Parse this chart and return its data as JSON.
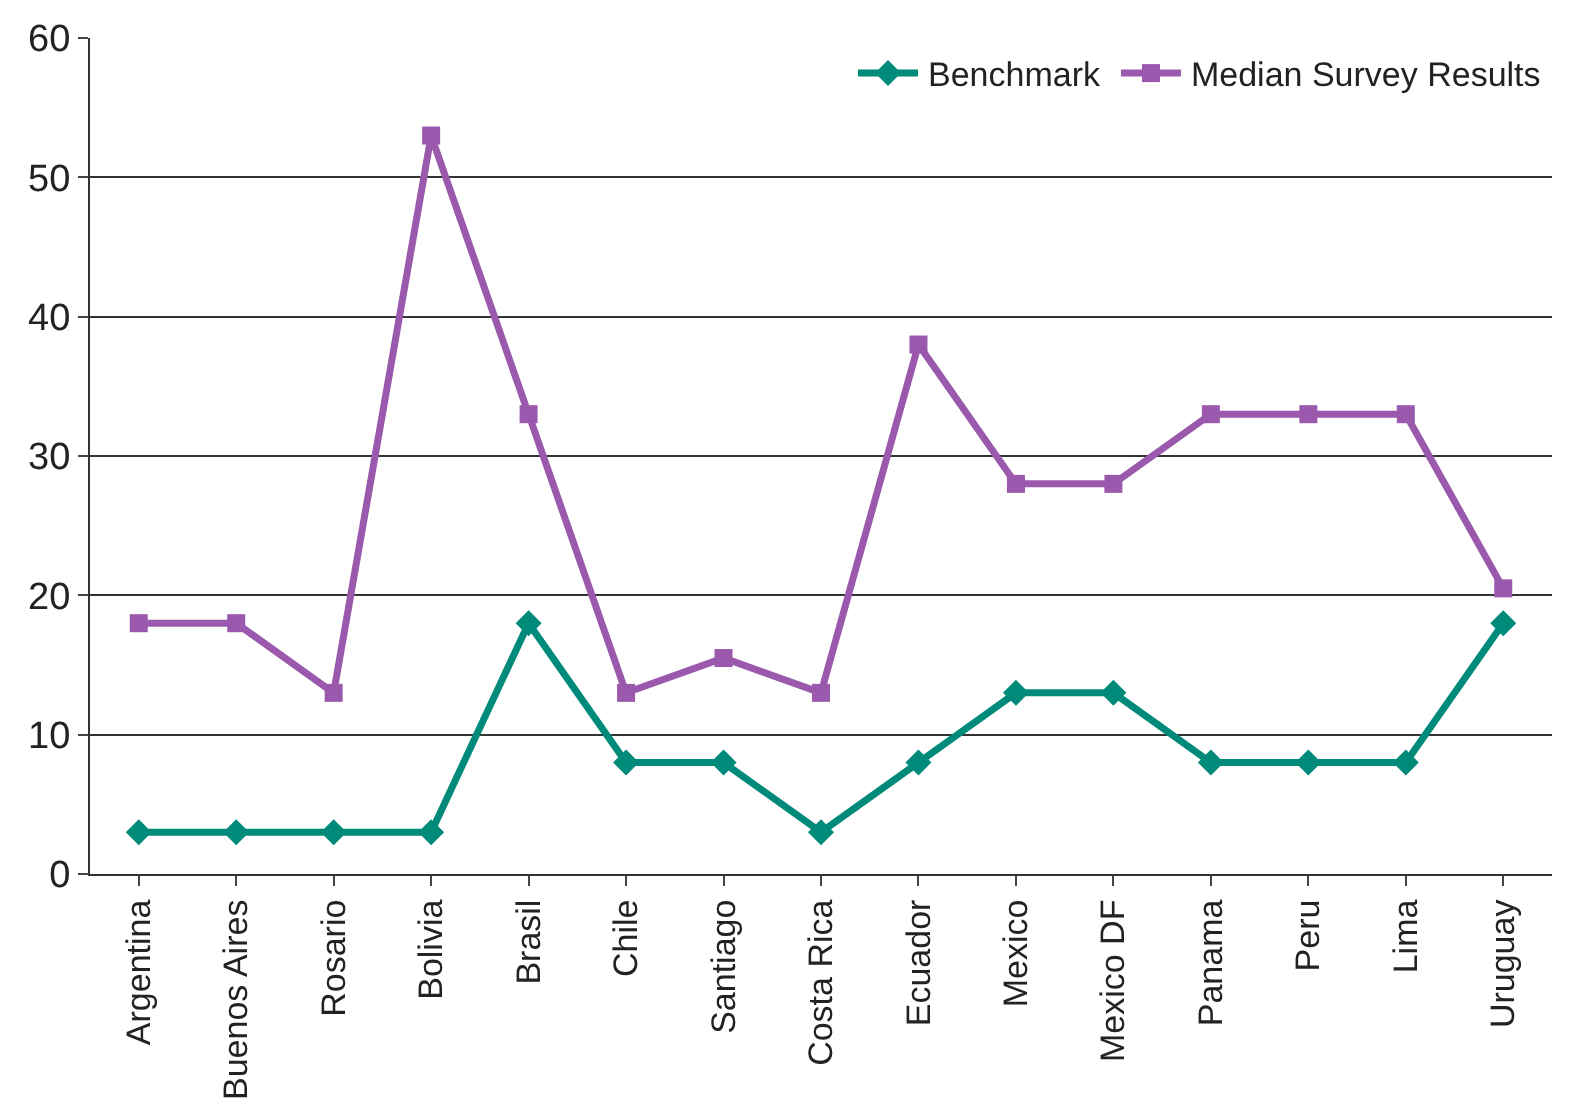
{
  "chart_data": {
    "type": "line",
    "categories": [
      "Argentina",
      "Buenos Aires",
      "Rosario",
      "Bolivia",
      "Brasil",
      "Chile",
      "Santiago",
      "Costa Rica",
      "Ecuador",
      "Mexico",
      "Mexico DF",
      "Panama",
      "Peru",
      "Lima",
      "Uruguay"
    ],
    "series": [
      {
        "name": "Benchmark",
        "color": "#008a7a",
        "marker": "diamond",
        "values": [
          3,
          3,
          3,
          3,
          18,
          8,
          8,
          3,
          8,
          13,
          13,
          8,
          8,
          8,
          18
        ]
      },
      {
        "name": "Median Survey Results",
        "color": "#9b59ad",
        "marker": "square",
        "values": [
          18,
          18,
          13,
          53,
          33,
          13,
          15.5,
          13,
          38,
          28,
          28,
          33,
          33,
          33,
          20.5
        ]
      }
    ],
    "ylim": [
      0,
      60
    ],
    "yticks": [
      0,
      10,
      20,
      30,
      40,
      50,
      60
    ],
    "grid": "y",
    "legend": "top right"
  }
}
